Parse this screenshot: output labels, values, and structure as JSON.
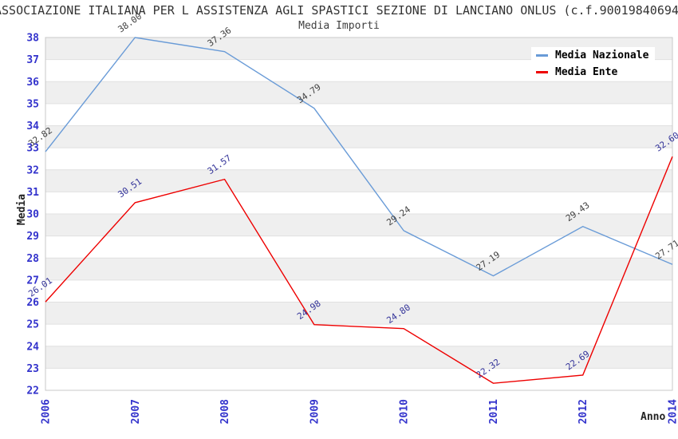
{
  "title": "ASSOCIAZIONE ITALIANA PER L ASSISTENZA AGLI SPASTICI SEZIONE DI LANCIANO ONLUS (c.f.90019840694",
  "subtitle": "Media Importi",
  "y_axis_title": "Media",
  "x_axis_title": "Anno",
  "legend": [
    {
      "label": "Media Nazionale",
      "color": "#699bd7"
    },
    {
      "label": "Media Ente",
      "color": "#ee0000"
    }
  ],
  "colors": {
    "band": "#efefef",
    "gridline": "#e0e0e0",
    "plot_border": "#c8c8c8",
    "tick_label": "#3333cc",
    "national_line": "#699bd7",
    "national_label": "#404040",
    "ente_line": "#ee0000",
    "ente_label": "#333399"
  },
  "chart_data": {
    "type": "line",
    "title": "Media Importi",
    "xlabel": "Anno",
    "ylabel": "Media",
    "x": [
      "2006",
      "2007",
      "2008",
      "2009",
      "2010",
      "2011",
      "2012",
      "2014"
    ],
    "series": [
      {
        "name": "Media Nazionale",
        "color": "#699bd7",
        "label_color": "#404040",
        "values": [
          32.82,
          38.0,
          37.36,
          34.79,
          29.24,
          27.19,
          29.43,
          27.71
        ]
      },
      {
        "name": "Media Ente",
        "color": "#ee0000",
        "label_color": "#333399",
        "values": [
          26.01,
          30.51,
          31.57,
          24.98,
          24.8,
          22.32,
          22.69,
          32.6
        ]
      }
    ],
    "ylim": [
      22,
      38
    ],
    "y_ticks": [
      38,
      37,
      36,
      35,
      34,
      33,
      32,
      31,
      30,
      29,
      28,
      27,
      26,
      25,
      24,
      23,
      22
    ],
    "grid": "horizontal-bands-alternating",
    "legend_position": "top-right",
    "point_labels": "two-decimal, rotated -35deg"
  }
}
